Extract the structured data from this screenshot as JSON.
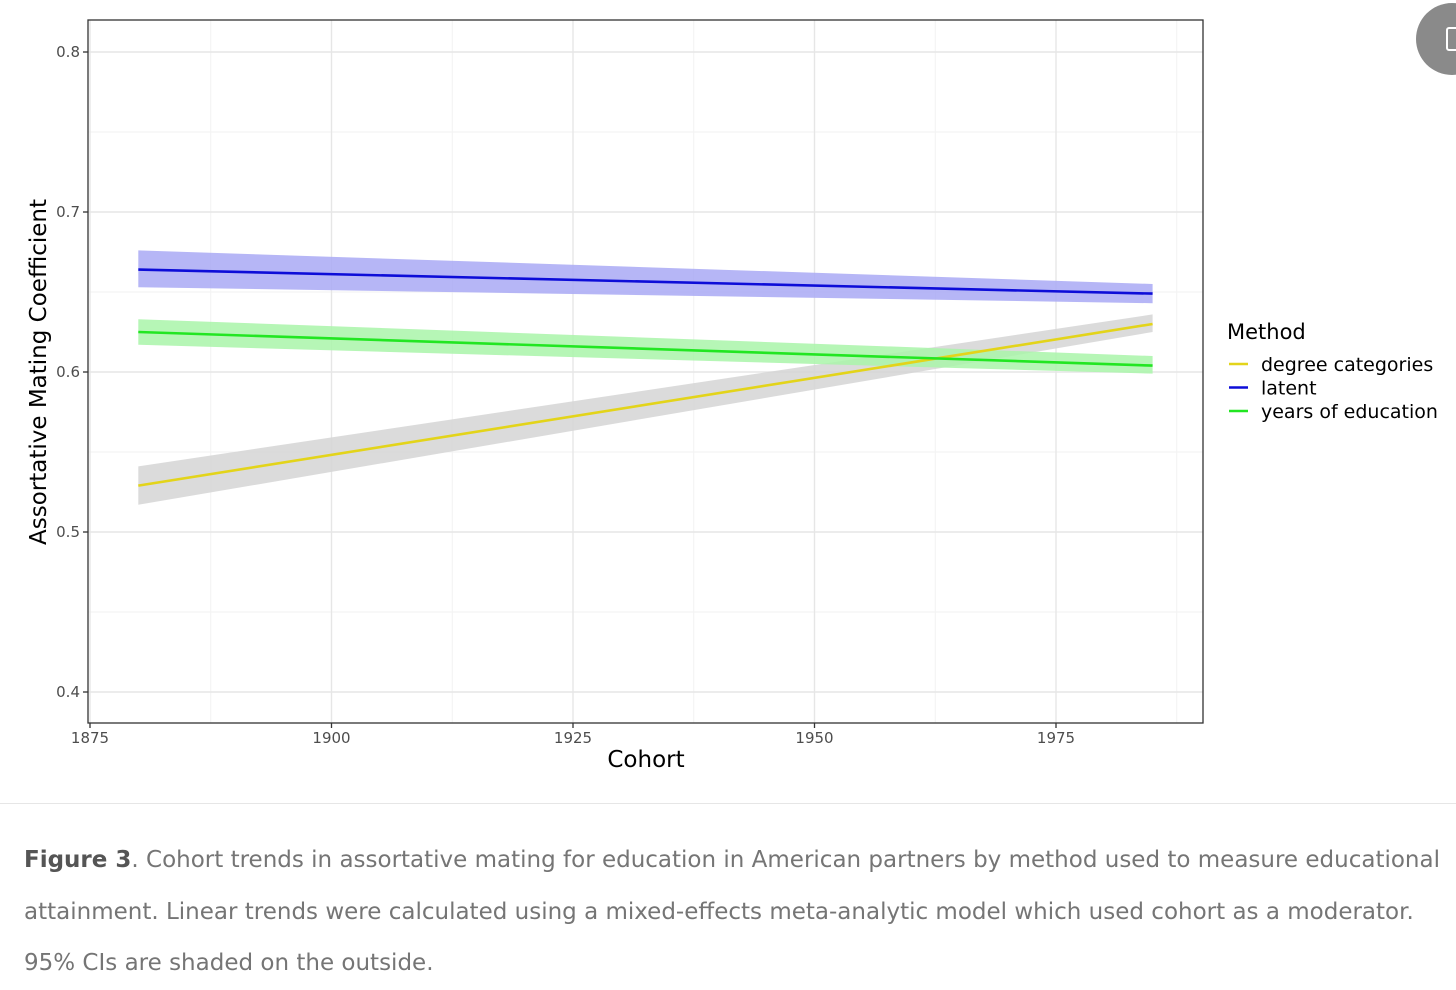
{
  "chart_data": {
    "type": "line",
    "xlabel": "Cohort",
    "ylabel": "Assortative Mating Coefficient",
    "xlim": [
      1875,
      1985
    ],
    "ylim": [
      0.4,
      0.8
    ],
    "x_ticks": [
      1875,
      1900,
      1925,
      1950,
      1975
    ],
    "y_ticks": [
      0.4,
      0.5,
      0.6,
      0.7,
      0.8
    ],
    "grid": true,
    "legend": {
      "title": "Method",
      "placement": "right"
    },
    "series": [
      {
        "name": "degree categories",
        "color": "#e3d41a",
        "band_color": "#d5d5d5",
        "x": [
          1880,
          1985
        ],
        "y": [
          0.529,
          0.63
        ],
        "lower": [
          0.517,
          0.625
        ],
        "upper": [
          0.541,
          0.636
        ]
      },
      {
        "name": "latent",
        "color": "#0d0dd8",
        "band_color": "#a9a9f5",
        "x": [
          1880,
          1985
        ],
        "y": [
          0.664,
          0.649
        ],
        "lower": [
          0.653,
          0.643
        ],
        "upper": [
          0.676,
          0.655
        ]
      },
      {
        "name": "years of education",
        "color": "#22e622",
        "band_color": "#a9f5a9",
        "x": [
          1880,
          1985
        ],
        "y": [
          0.625,
          0.604
        ],
        "lower": [
          0.617,
          0.599
        ],
        "upper": [
          0.633,
          0.61
        ]
      }
    ]
  },
  "caption": {
    "label": "Figure 3",
    "text": ". Cohort trends in assortative mating for education in American partners by method used to measure educational attainment. Linear trends were calculated using a mixed-effects meta-analytic model which used cohort as a moderator. 95% CIs are shaded on the outside."
  },
  "icons": {
    "corner_button": "expand-image-icon"
  }
}
